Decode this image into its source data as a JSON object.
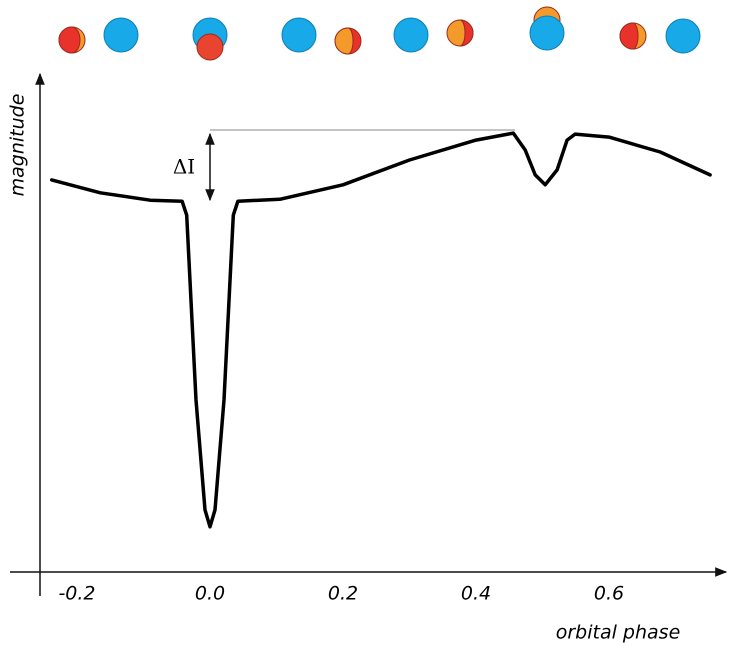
{
  "chart_data": {
    "type": "line",
    "x_label": "orbital phase",
    "y_label": "magnitude",
    "annotation": "ΔI",
    "color": "#000000",
    "x": [
      -0.238,
      -0.165,
      -0.09,
      -0.042,
      -0.035,
      -0.021,
      -0.0075,
      0,
      0.0075,
      0.021,
      0.035,
      0.042,
      0.105,
      0.2,
      0.3,
      0.4,
      0.456,
      0.474,
      0.489,
      0.504,
      0.522,
      0.537,
      0.549,
      0.6,
      0.677,
      0.752
    ],
    "values": [
      7.89,
      7.63,
      7.48,
      7.46,
      7.18,
      3.46,
      1.25,
      0.91,
      1.25,
      3.46,
      7.18,
      7.46,
      7.5,
      7.79,
      8.29,
      8.69,
      8.83,
      8.49,
      7.99,
      7.79,
      8.09,
      8.69,
      8.81,
      8.75,
      8.45,
      7.99
    ],
    "xlim": [
      -0.3,
      0.775
    ],
    "ylim": [
      0,
      10
    ],
    "xticks": [
      -0.2,
      {
        "value": 0,
        "label": "0.0"
      },
      0.2,
      0.4,
      0.6
    ]
  }
}
